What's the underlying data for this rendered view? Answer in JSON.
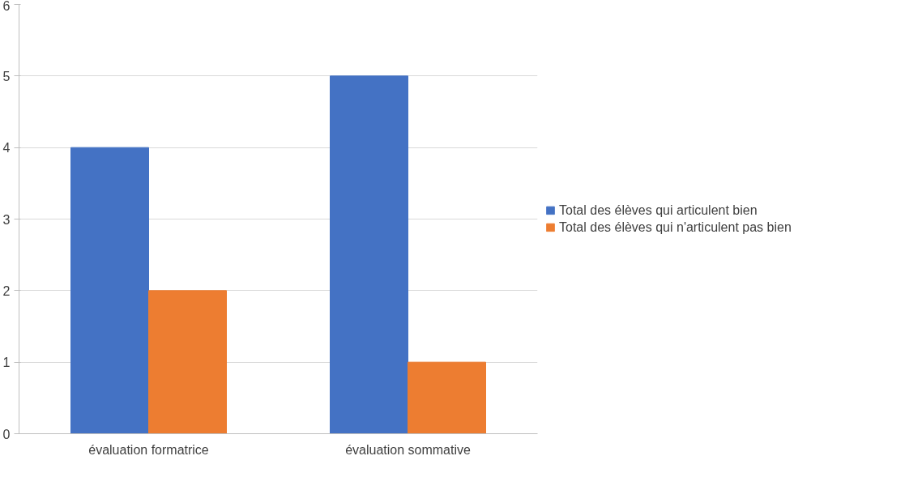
{
  "chart_data": {
    "type": "bar",
    "categories": [
      "évaluation formatrice",
      "évaluation sommative"
    ],
    "series": [
      {
        "name": "Total des élèves qui articulent bien",
        "color": "#4472c4",
        "values": [
          4,
          5
        ]
      },
      {
        "name": "Total des élèves qui n'articulent pas bien",
        "color": "#ed7d31",
        "values": [
          2,
          1
        ]
      }
    ],
    "ylim": [
      0,
      6
    ],
    "yticks": [
      0,
      1,
      2,
      3,
      4,
      5,
      6
    ],
    "grid": "y",
    "legend": "right"
  }
}
